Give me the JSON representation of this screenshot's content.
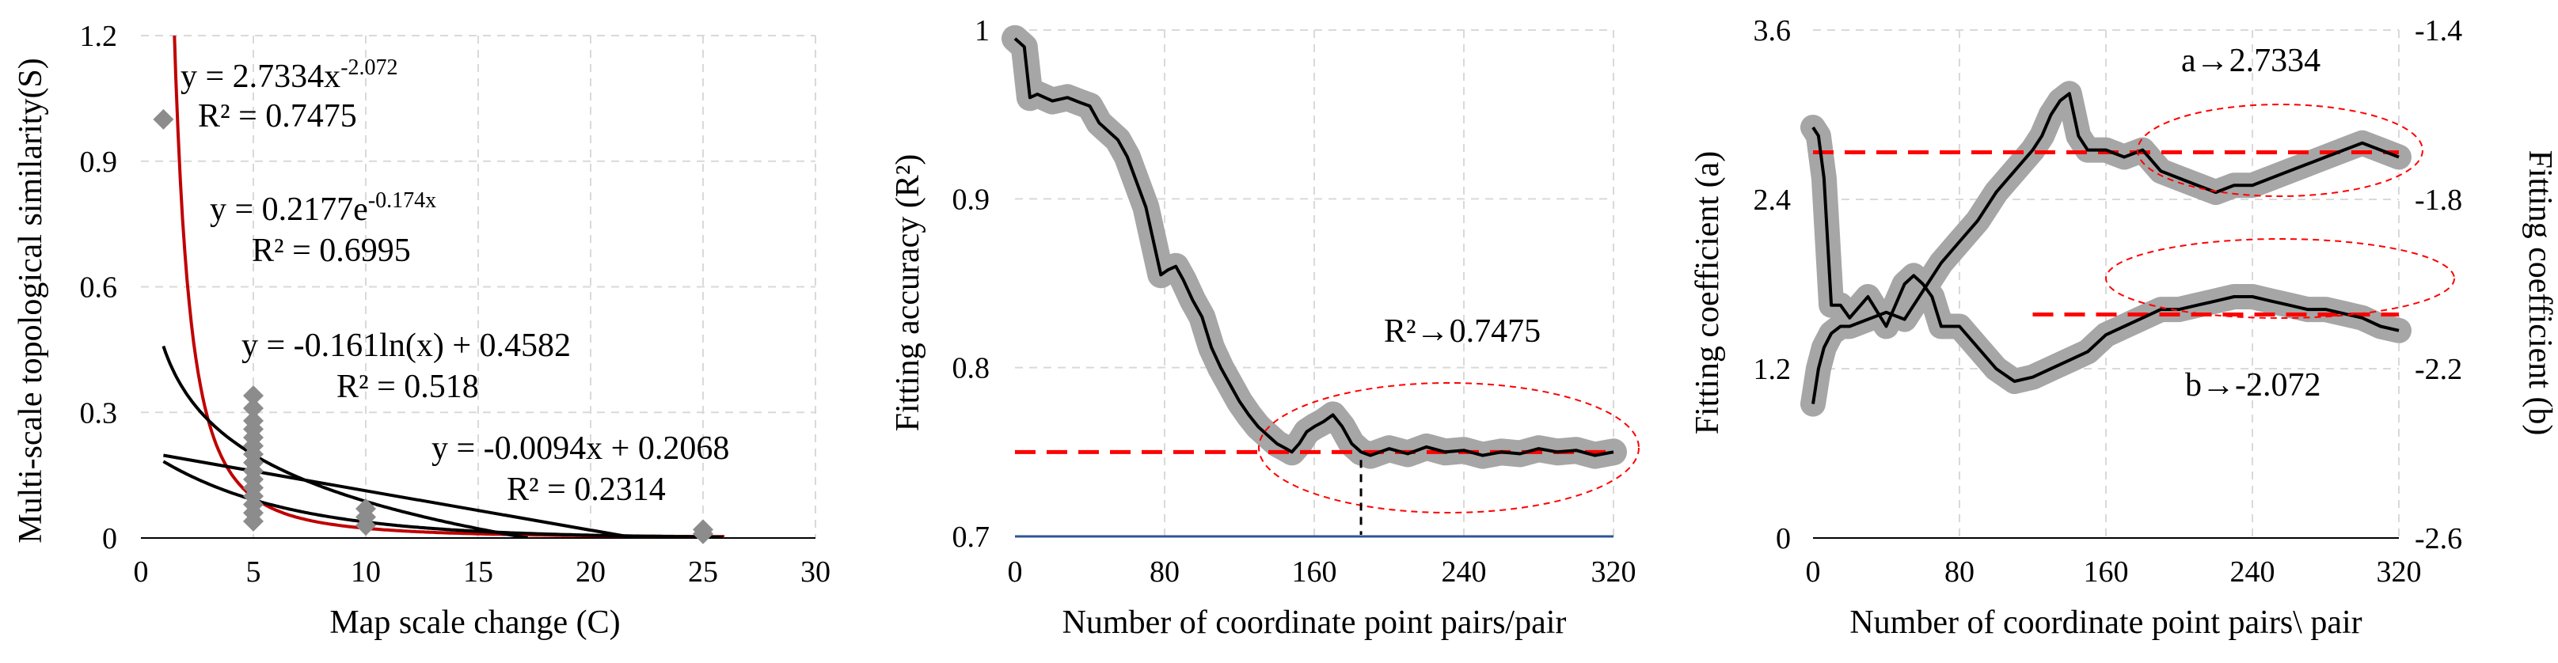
{
  "chart_data": [
    {
      "type": "scatter",
      "xlabel": "Map scale change (C)",
      "ylabel": "Multi-scale topological similarity(S)",
      "xlim": [
        0,
        30
      ],
      "ylim": [
        0,
        1.2
      ],
      "xticks": [
        "0",
        "5",
        "10",
        "15",
        "20",
        "25",
        "30"
      ],
      "yticks": [
        "0",
        "0.3",
        "0.6",
        "0.9",
        "1.2"
      ],
      "grid": true,
      "colors": {
        "points": "#8c8c8c",
        "power_curve": "#c00000",
        "other_curves": "#000000"
      },
      "points": [
        {
          "x": 1,
          "y": 1.0
        },
        {
          "x": 5,
          "y": 0.34
        },
        {
          "x": 5,
          "y": 0.31
        },
        {
          "x": 5,
          "y": 0.28
        },
        {
          "x": 5,
          "y": 0.26
        },
        {
          "x": 5,
          "y": 0.24
        },
        {
          "x": 5,
          "y": 0.22
        },
        {
          "x": 5,
          "y": 0.2
        },
        {
          "x": 5,
          "y": 0.18
        },
        {
          "x": 5,
          "y": 0.16
        },
        {
          "x": 5,
          "y": 0.14
        },
        {
          "x": 5,
          "y": 0.12
        },
        {
          "x": 5,
          "y": 0.1
        },
        {
          "x": 5,
          "y": 0.08
        },
        {
          "x": 5,
          "y": 0.06
        },
        {
          "x": 5,
          "y": 0.04
        },
        {
          "x": 10,
          "y": 0.07
        },
        {
          "x": 10,
          "y": 0.05
        },
        {
          "x": 10,
          "y": 0.03
        },
        {
          "x": 25,
          "y": 0.02
        },
        {
          "x": 25,
          "y": 0.01
        }
      ],
      "fits": [
        {
          "kind": "power",
          "a": 2.7334,
          "b": -2.072,
          "eq_main": "y = 2.7334x",
          "eq_sup": "-2.072",
          "r2_label": "R² = 0.7475"
        },
        {
          "kind": "exponential",
          "a": 0.2177,
          "b": -0.174,
          "eq_main": "y = 0.2177e",
          "eq_sup": "-0.174x",
          "r2_label": "R² = 0.6995"
        },
        {
          "kind": "log",
          "a": -0.161,
          "b": 0.4582,
          "eq_main": "y = -0.161ln(x) + 0.4582",
          "eq_sup": "",
          "r2_label": "R² = 0.518"
        },
        {
          "kind": "linear",
          "a": -0.0094,
          "b": 0.2068,
          "eq_main": "y = -0.0094x + 0.2068",
          "eq_sup": "",
          "r2_label": "R² = 0.2314"
        }
      ]
    },
    {
      "type": "line",
      "xlabel": "Number of coordinate point pairs/pair",
      "ylabel": "Fitting accuracy (R²)",
      "xlim": [
        0,
        320
      ],
      "ylim": [
        0.7,
        1.0
      ],
      "xticks": [
        "0",
        "80",
        "160",
        "240",
        "320"
      ],
      "yticks": [
        "0.7",
        "0.8",
        "0.9",
        "1"
      ],
      "grid": true,
      "colors": {
        "line": "#000000",
        "band": "#a6a6a6",
        "reference": "#ff0000"
      },
      "reference_value": 0.75,
      "marker_x": 185,
      "annotation": "R²→0.7475",
      "series": [
        {
          "x": [
            0,
            5,
            8,
            12,
            20,
            28,
            35,
            40,
            45,
            50,
            55,
            60,
            65,
            70,
            75,
            78,
            82,
            86,
            90,
            95,
            100,
            105,
            110,
            115,
            120,
            125,
            130,
            135,
            140,
            145,
            148,
            152,
            156,
            160,
            165,
            170,
            175,
            180,
            185,
            190,
            200,
            210,
            220,
            230,
            240,
            250,
            260,
            270,
            280,
            290,
            300,
            310,
            320
          ],
          "y": [
            0.995,
            0.99,
            0.96,
            0.962,
            0.958,
            0.96,
            0.957,
            0.955,
            0.945,
            0.94,
            0.935,
            0.925,
            0.91,
            0.895,
            0.87,
            0.855,
            0.858,
            0.86,
            0.852,
            0.84,
            0.83,
            0.812,
            0.8,
            0.79,
            0.78,
            0.772,
            0.765,
            0.76,
            0.755,
            0.752,
            0.75,
            0.755,
            0.762,
            0.765,
            0.768,
            0.772,
            0.765,
            0.755,
            0.75,
            0.748,
            0.752,
            0.749,
            0.753,
            0.75,
            0.751,
            0.748,
            0.75,
            0.749,
            0.752,
            0.75,
            0.751,
            0.748,
            0.75
          ]
        }
      ]
    },
    {
      "type": "line",
      "xlabel": "Number of coordinate  point pairs\\ pair",
      "ylabel": "Fitting coefficient (a)",
      "ylabel_right": "Fitting coefficient (b)",
      "xlim": [
        0,
        320
      ],
      "ylim": [
        0,
        3.6
      ],
      "ylim_right": [
        -2.6,
        -1.4
      ],
      "xticks": [
        "0",
        "80",
        "160",
        "240",
        "320"
      ],
      "yticks": [
        "0",
        "1.2",
        "2.4",
        "3.6"
      ],
      "yticks_right": [
        "-2.6",
        "-2.2",
        "-1.8",
        "-1.4"
      ],
      "grid": true,
      "colors": {
        "line": "#000000",
        "band": "#a6a6a6",
        "reference": "#ff0000"
      },
      "annotations": [
        "a→2.7334",
        "b→-2.072"
      ],
      "series": [
        {
          "name": "a",
          "axis": "left",
          "reference": 2.7334,
          "x": [
            0,
            3,
            6,
            10,
            15,
            20,
            30,
            40,
            50,
            60,
            70,
            80,
            90,
            100,
            110,
            120,
            125,
            130,
            135,
            140,
            145,
            150,
            160,
            170,
            180,
            190,
            200,
            210,
            220,
            230,
            240,
            250,
            260,
            270,
            280,
            290,
            300,
            310,
            320
          ],
          "y": [
            0.95,
            1.2,
            1.35,
            1.45,
            1.5,
            1.5,
            1.55,
            1.6,
            1.55,
            1.75,
            1.95,
            2.1,
            2.25,
            2.45,
            2.6,
            2.75,
            2.85,
            3.0,
            3.1,
            3.15,
            2.85,
            2.75,
            2.75,
            2.7,
            2.75,
            2.6,
            2.55,
            2.5,
            2.45,
            2.5,
            2.5,
            2.55,
            2.6,
            2.65,
            2.7,
            2.75,
            2.8,
            2.75,
            2.7
          ]
        },
        {
          "name": "b",
          "axis": "right",
          "reference": -2.072,
          "x": [
            0,
            3,
            6,
            10,
            15,
            20,
            30,
            40,
            50,
            55,
            60,
            65,
            70,
            80,
            90,
            100,
            110,
            120,
            130,
            140,
            150,
            160,
            170,
            180,
            190,
            200,
            210,
            220,
            230,
            240,
            250,
            260,
            270,
            280,
            290,
            300,
            310,
            320
          ],
          "y": [
            -1.63,
            -1.65,
            -1.75,
            -2.05,
            -2.05,
            -2.08,
            -2.03,
            -2.1,
            -2.0,
            -1.98,
            -2.0,
            -2.03,
            -2.1,
            -2.1,
            -2.15,
            -2.2,
            -2.23,
            -2.22,
            -2.2,
            -2.18,
            -2.16,
            -2.12,
            -2.1,
            -2.08,
            -2.06,
            -2.06,
            -2.05,
            -2.04,
            -2.03,
            -2.03,
            -2.04,
            -2.05,
            -2.06,
            -2.06,
            -2.07,
            -2.08,
            -2.1,
            -2.11
          ]
        }
      ]
    }
  ]
}
